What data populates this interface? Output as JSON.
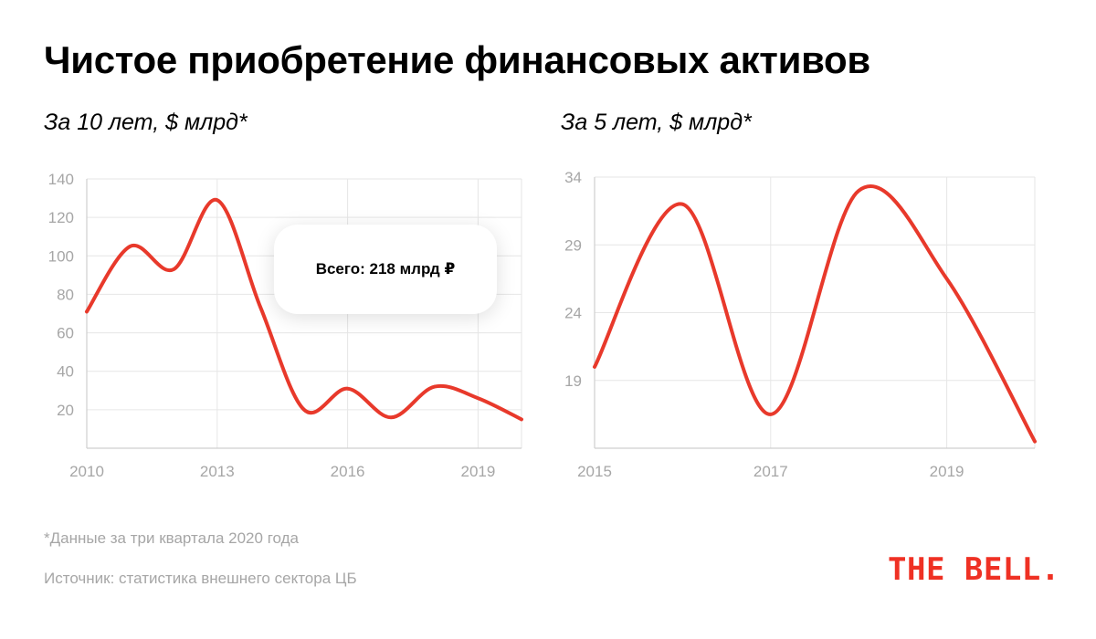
{
  "title": "Чистое приобретение финансовых активов",
  "charts": {
    "left": {
      "subtitle": "За 10 лет, $ млрд*",
      "tooltip": "Всего: 218 млрд ₽"
    },
    "right": {
      "subtitle": "За 5 лет, $ млрд*"
    }
  },
  "footnotes": {
    "note": "*Данные за три квартала 2020 года",
    "source": "Источник: статистика внешнего сектора ЦБ"
  },
  "logo": "THE BELL.",
  "colors": {
    "line": "#e8392b",
    "grid": "#e6e6e6",
    "axis": "#a6a6a6",
    "logo": "#ef3124"
  },
  "chart_data": [
    {
      "type": "line",
      "title": "За 10 лет, $ млрд*",
      "x": [
        2010,
        2011,
        2012,
        2013,
        2014,
        2015,
        2016,
        2017,
        2018,
        2019,
        2020
      ],
      "y": [
        71,
        105,
        93,
        129,
        73,
        20,
        31,
        16,
        32,
        26,
        15
      ],
      "xlim": [
        2010,
        2020
      ],
      "ylim": [
        0,
        140
      ],
      "xticks": [
        2010,
        2013,
        2016,
        2019
      ],
      "yticks": [
        20,
        40,
        60,
        80,
        100,
        120,
        140
      ],
      "grid": true,
      "smooth": true,
      "annotation": "Всего: 218 млрд ₽"
    },
    {
      "type": "line",
      "title": "За 5 лет, $ млрд*",
      "x": [
        2015,
        2016,
        2017,
        2018,
        2019,
        2020
      ],
      "y": [
        20,
        32,
        16.5,
        33,
        26.5,
        14.5
      ],
      "xlim": [
        2015,
        2020
      ],
      "ylim": [
        14,
        34
      ],
      "xticks": [
        2015,
        2017,
        2019
      ],
      "yticks": [
        19,
        24,
        29,
        34
      ],
      "grid": true,
      "smooth": true
    }
  ]
}
